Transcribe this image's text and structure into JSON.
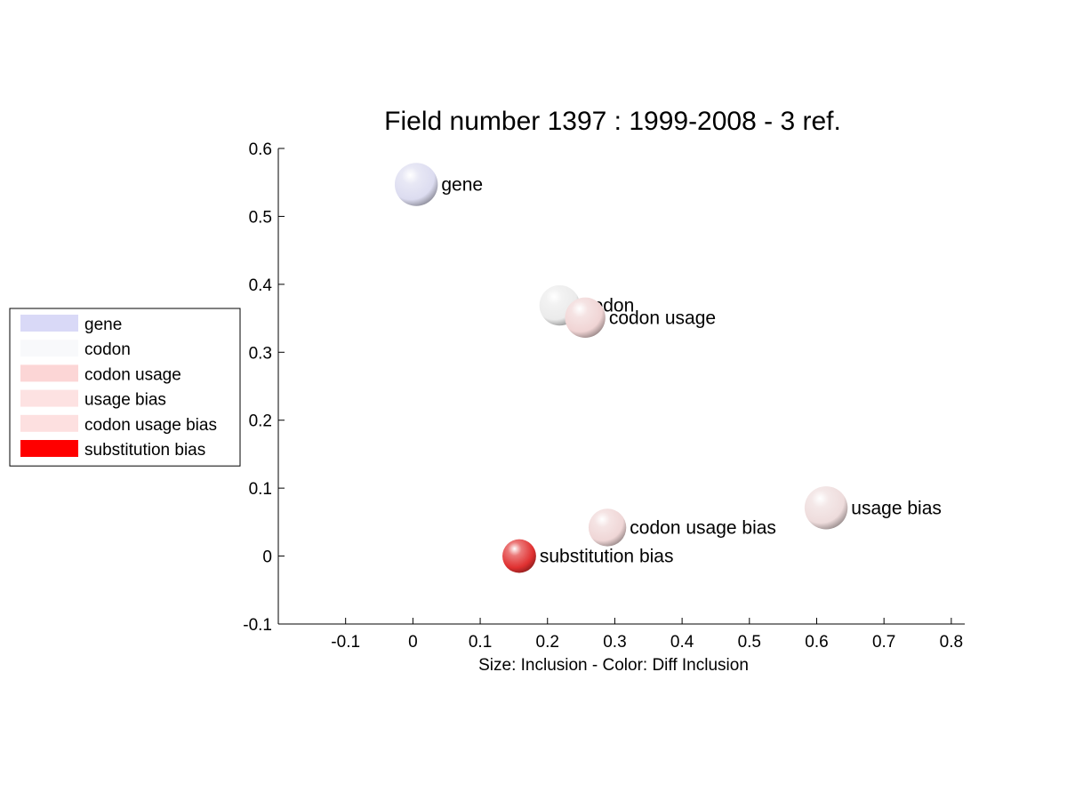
{
  "chart_data": {
    "type": "scatter",
    "title": "Field number 1397 : 1999-2008  - 3 ref.",
    "xlabel": "Size: Inclusion - Color: Diff Inclusion",
    "ylabel": "",
    "xlim": [
      -0.2,
      0.82
    ],
    "ylim": [
      -0.1,
      0.6
    ],
    "xticks": [
      -0.1,
      0,
      0.1,
      0.2,
      0.3,
      0.4,
      0.5,
      0.6,
      0.7,
      0.8
    ],
    "yticks": [
      -0.1,
      0,
      0.1,
      0.2,
      0.3,
      0.4,
      0.5,
      0.6
    ],
    "xtick_labels": [
      "-0.1",
      "0",
      "0.1",
      "0.2",
      "0.3",
      "0.4",
      "0.5",
      "0.6",
      "0.7",
      "0.8"
    ],
    "ytick_labels": [
      "-0.1",
      "0",
      "0.1",
      "0.2",
      "0.3",
      "0.4",
      "0.5",
      "0.6"
    ],
    "grid": false,
    "legend_position": "outside-left",
    "points": [
      {
        "label": "gene",
        "x": 0.005,
        "y": 0.547,
        "size": 0.032,
        "color": "#dcdcf0",
        "legend_color": "#d9d9f7"
      },
      {
        "label": "codon",
        "x": 0.218,
        "y": 0.369,
        "size": 0.03,
        "color": "#ebebeb",
        "legend_color": "#f8f9fb"
      },
      {
        "label": "codon usage",
        "x": 0.256,
        "y": 0.351,
        "size": 0.03,
        "color": "#f0d4d4",
        "legend_color": "#fcd6d6"
      },
      {
        "label": "usage bias",
        "x": 0.614,
        "y": 0.071,
        "size": 0.032,
        "color": "#eedcdc",
        "legend_color": "#fde2e2"
      },
      {
        "label": "codon usage bias",
        "x": 0.289,
        "y": 0.042,
        "size": 0.028,
        "color": "#efd6d6",
        "legend_color": "#fde0e0"
      },
      {
        "label": "substitution bias",
        "x": 0.158,
        "y": 0.0,
        "size": 0.025,
        "color": "#e03030",
        "legend_color": "#ff0000"
      }
    ]
  }
}
